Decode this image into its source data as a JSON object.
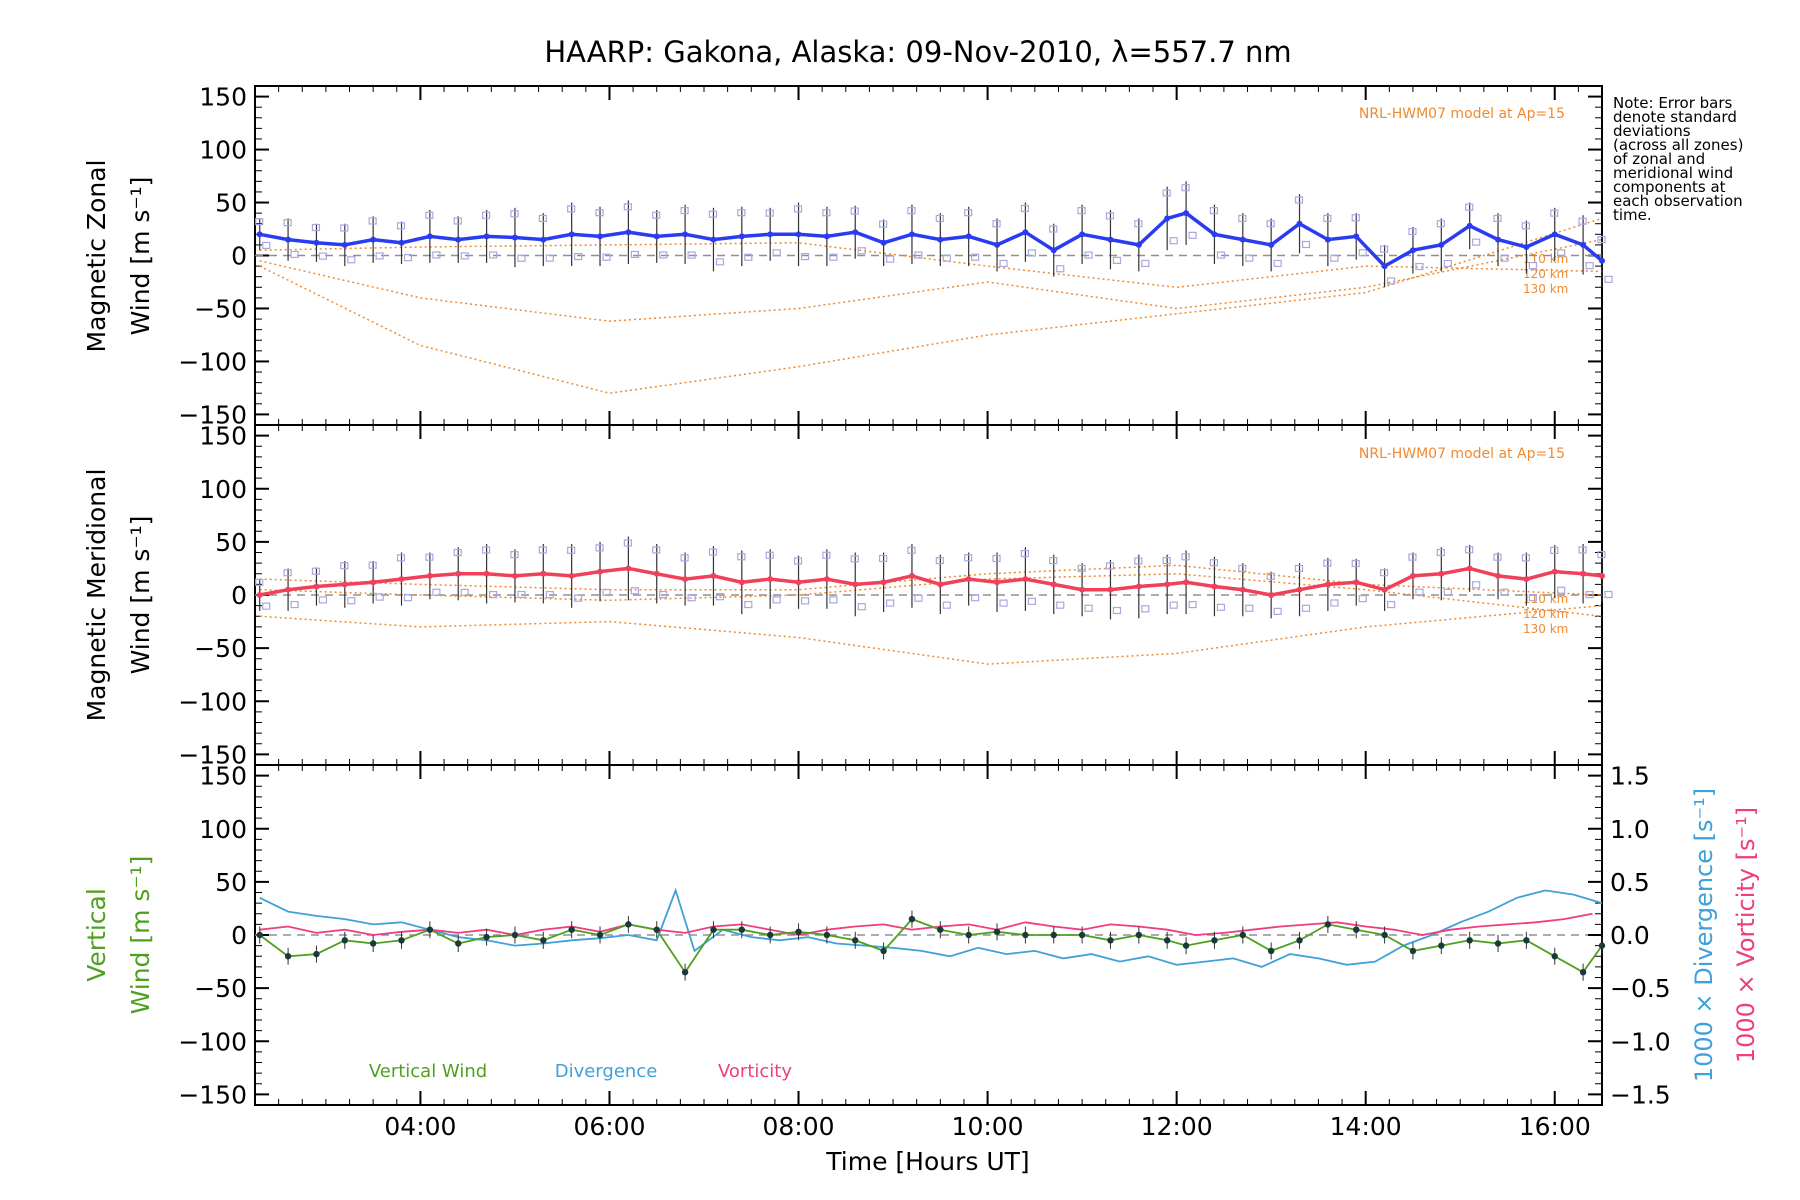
{
  "title": "HAARP: Gakona,  Alaska: 09-Nov-2010, λ=557.7 nm",
  "note_lines": [
    "Note: Error bars",
    "denote standard",
    "deviations",
    "(across all zones)",
    "of zonal and",
    "meridional wind",
    "components at",
    "each observation",
    "time."
  ],
  "colors": {
    "zonal": "#2a3cf0",
    "meridional": "#f0405a",
    "model": "#f08a30",
    "vertical": "#50a020",
    "divergence": "#40a0d8",
    "vorticity": "#f03c80",
    "scatter": "#a8a8e0",
    "zero_line": "#909090"
  },
  "chart_data": {
    "type": "line",
    "xlabel": "Time [Hours UT]",
    "x_ticks": [
      "04:00",
      "06:00",
      "08:00",
      "10:00",
      "12:00",
      "14:00",
      "16:00"
    ],
    "x_tick_hours": [
      4,
      6,
      8,
      10,
      12,
      14,
      16
    ],
    "xlim": [
      2.25,
      16.5
    ],
    "ylim": [
      -160,
      160
    ],
    "y_ticks": [
      "150",
      "100",
      "50",
      "0",
      "−50",
      "−100",
      "−150"
    ],
    "y_tick_values": [
      150,
      100,
      50,
      0,
      -50,
      -100,
      -150
    ],
    "grid": false,
    "panels": [
      {
        "id": "zonal",
        "ylabel_line1": "Magnetic Zonal",
        "ylabel_line2": "Wind [m s⁻¹]",
        "model_label": "NRL-HWM07 model at Ap=15",
        "model_altitude_labels": [
          "110 km",
          "120 km",
          "130 km"
        ],
        "series": {
          "x": [
            2.3,
            2.6,
            2.9,
            3.2,
            3.5,
            3.8,
            4.1,
            4.4,
            4.7,
            5.0,
            5.3,
            5.6,
            5.9,
            6.2,
            6.5,
            6.8,
            7.1,
            7.4,
            7.7,
            8.0,
            8.3,
            8.6,
            8.9,
            9.2,
            9.5,
            9.8,
            10.1,
            10.4,
            10.7,
            11.0,
            11.3,
            11.6,
            11.9,
            12.1,
            12.4,
            12.7,
            13.0,
            13.3,
            13.6,
            13.9,
            14.2,
            14.5,
            14.8,
            15.1,
            15.4,
            15.7,
            16.0,
            16.3,
            16.5
          ],
          "y": [
            20,
            15,
            12,
            10,
            15,
            12,
            18,
            15,
            18,
            17,
            15,
            20,
            18,
            22,
            18,
            20,
            15,
            18,
            20,
            20,
            18,
            22,
            12,
            20,
            15,
            18,
            10,
            22,
            5,
            20,
            15,
            10,
            35,
            40,
            20,
            15,
            10,
            30,
            15,
            18,
            -10,
            5,
            10,
            28,
            15,
            8,
            20,
            10,
            -5
          ],
          "error": [
            15,
            20,
            18,
            20,
            22,
            20,
            25,
            22,
            25,
            28,
            25,
            30,
            28,
            30,
            25,
            28,
            30,
            28,
            25,
            30,
            28,
            25,
            22,
            28,
            25,
            28,
            25,
            28,
            25,
            28,
            28,
            25,
            30,
            30,
            28,
            25,
            25,
            28,
            25,
            22,
            20,
            22,
            25,
            22,
            25,
            25,
            25,
            28,
            25
          ]
        },
        "model_curves": [
          {
            "name": "110 km",
            "x": [
              2.3,
              4.0,
              6.0,
              8.0,
              10.0,
              12.0,
              14.0,
              16.5
            ],
            "y": [
              5,
              8,
              10,
              12,
              -10,
              -30,
              -10,
              -15
            ]
          },
          {
            "name": "120 km",
            "x": [
              2.3,
              4.0,
              6.0,
              8.0,
              10.0,
              12.0,
              14.0,
              16.5
            ],
            "y": [
              -5,
              -40,
              -62,
              -50,
              -25,
              -50,
              -30,
              15
            ]
          },
          {
            "name": "130 km",
            "x": [
              2.3,
              4.0,
              6.0,
              8.0,
              10.0,
              12.0,
              14.0,
              16.5
            ],
            "y": [
              -10,
              -85,
              -130,
              -105,
              -75,
              -55,
              -35,
              35
            ]
          }
        ]
      },
      {
        "id": "meridional",
        "ylabel_line1": "Magnetic Meridional",
        "ylabel_line2": "Wind [m s⁻¹]",
        "model_label": "NRL-HWM07 model at Ap=15",
        "model_altitude_labels": [
          "110 km",
          "120 km",
          "130 km"
        ],
        "series": {
          "x": [
            2.3,
            2.6,
            2.9,
            3.2,
            3.5,
            3.8,
            4.1,
            4.4,
            4.7,
            5.0,
            5.3,
            5.6,
            5.9,
            6.2,
            6.5,
            6.8,
            7.1,
            7.4,
            7.7,
            8.0,
            8.3,
            8.6,
            8.9,
            9.2,
            9.5,
            9.8,
            10.1,
            10.4,
            10.7,
            11.0,
            11.3,
            11.6,
            11.9,
            12.1,
            12.4,
            12.7,
            13.0,
            13.3,
            13.6,
            13.9,
            14.2,
            14.5,
            14.8,
            15.1,
            15.4,
            15.7,
            16.0,
            16.3,
            16.5
          ],
          "y": [
            0,
            5,
            8,
            10,
            12,
            15,
            18,
            20,
            20,
            18,
            20,
            18,
            22,
            25,
            20,
            15,
            18,
            12,
            15,
            12,
            15,
            10,
            12,
            18,
            10,
            15,
            12,
            15,
            10,
            5,
            5,
            8,
            10,
            12,
            8,
            5,
            0,
            5,
            10,
            12,
            5,
            18,
            20,
            25,
            18,
            15,
            22,
            20,
            18
          ],
          "error": [
            15,
            20,
            18,
            22,
            20,
            25,
            22,
            25,
            28,
            25,
            28,
            30,
            28,
            30,
            28,
            25,
            28,
            30,
            28,
            25,
            28,
            30,
            28,
            30,
            28,
            25,
            28,
            30,
            28,
            25,
            28,
            30,
            28,
            30,
            28,
            25,
            22,
            25,
            25,
            22,
            20,
            22,
            25,
            22,
            22,
            25,
            25,
            28,
            25
          ]
        },
        "model_curves": [
          {
            "name": "110 km",
            "x": [
              2.3,
              4.0,
              6.0,
              8.0,
              10.0,
              12.0,
              14.0,
              16.5
            ],
            "y": [
              15,
              10,
              5,
              5,
              20,
              28,
              10,
              0
            ]
          },
          {
            "name": "120 km",
            "x": [
              2.3,
              4.0,
              6.0,
              8.0,
              10.0,
              12.0,
              14.0,
              16.5
            ],
            "y": [
              5,
              0,
              -5,
              0,
              15,
              20,
              5,
              -20
            ]
          },
          {
            "name": "130 km",
            "x": [
              2.3,
              4.0,
              6.0,
              8.0,
              10.0,
              12.0,
              14.0,
              16.5
            ],
            "y": [
              -20,
              -30,
              -25,
              -40,
              -65,
              -55,
              -30,
              -10
            ]
          }
        ]
      },
      {
        "id": "vertical",
        "ylabel_line1": "Vertical",
        "ylabel_line2": "Wind [m s⁻¹]",
        "y2_ticks": [
          "1.5",
          "1.0",
          "0.5",
          "0.0",
          "−0.5",
          "−1.0",
          "−1.5"
        ],
        "y2_tick_values": [
          1.5,
          1.0,
          0.5,
          0.0,
          -0.5,
          -1.0,
          -1.5
        ],
        "y2lim": [
          -1.6,
          1.6
        ],
        "y2label_divergence": "1000 × Divergence [s⁻¹]",
        "y2label_vorticity": "1000 × Vorticity [s⁻¹]",
        "legend": [
          "Vertical Wind",
          "Divergence",
          "Vorticity"
        ],
        "vertical_wind": {
          "x": [
            2.3,
            2.6,
            2.9,
            3.2,
            3.5,
            3.8,
            4.1,
            4.4,
            4.7,
            5.0,
            5.3,
            5.6,
            5.9,
            6.2,
            6.5,
            6.8,
            7.1,
            7.4,
            7.7,
            8.0,
            8.3,
            8.6,
            8.9,
            9.2,
            9.5,
            9.8,
            10.1,
            10.4,
            10.7,
            11.0,
            11.3,
            11.6,
            11.9,
            12.1,
            12.4,
            12.7,
            13.0,
            13.3,
            13.6,
            13.9,
            14.2,
            14.5,
            14.8,
            15.1,
            15.4,
            15.7,
            16.0,
            16.3,
            16.5
          ],
          "y": [
            0,
            -20,
            -18,
            -5,
            -8,
            -5,
            5,
            -8,
            -2,
            0,
            -5,
            5,
            0,
            10,
            5,
            -35,
            5,
            5,
            0,
            3,
            0,
            -5,
            -15,
            15,
            5,
            0,
            3,
            0,
            0,
            0,
            -5,
            0,
            -5,
            -10,
            -5,
            0,
            -15,
            -5,
            10,
            5,
            0,
            -15,
            -10,
            -5,
            -8,
            -5,
            -20,
            -35,
            -10
          ]
        },
        "divergence": {
          "x": [
            2.3,
            2.6,
            2.9,
            3.2,
            3.5,
            3.8,
            4.1,
            4.4,
            4.7,
            5.0,
            5.3,
            5.6,
            5.9,
            6.2,
            6.5,
            6.7,
            6.9,
            7.2,
            7.5,
            7.8,
            8.1,
            8.4,
            8.7,
            9.0,
            9.3,
            9.6,
            9.9,
            10.2,
            10.5,
            10.8,
            11.1,
            11.4,
            11.7,
            12.0,
            12.3,
            12.6,
            12.9,
            13.2,
            13.5,
            13.8,
            14.1,
            14.4,
            14.7,
            15.0,
            15.3,
            15.6,
            15.9,
            16.2,
            16.5
          ],
          "y": [
            0.35,
            0.22,
            0.18,
            0.15,
            0.1,
            0.12,
            0.05,
            -0.02,
            -0.05,
            -0.1,
            -0.08,
            -0.05,
            -0.03,
            0.0,
            -0.05,
            0.42,
            -0.15,
            0.05,
            -0.02,
            -0.05,
            -0.02,
            -0.08,
            -0.1,
            -0.12,
            -0.15,
            -0.2,
            -0.12,
            -0.18,
            -0.15,
            -0.22,
            -0.18,
            -0.25,
            -0.2,
            -0.28,
            -0.25,
            -0.22,
            -0.3,
            -0.18,
            -0.22,
            -0.28,
            -0.25,
            -0.1,
            0.0,
            0.12,
            0.22,
            0.35,
            0.42,
            0.38,
            0.3
          ]
        },
        "vorticity": {
          "x": [
            2.3,
            2.6,
            2.9,
            3.2,
            3.5,
            3.8,
            4.1,
            4.4,
            4.7,
            5.0,
            5.3,
            5.6,
            5.9,
            6.2,
            6.5,
            6.8,
            7.1,
            7.4,
            7.7,
            8.0,
            8.3,
            8.6,
            8.9,
            9.2,
            9.5,
            9.8,
            10.1,
            10.4,
            10.7,
            11.0,
            11.3,
            11.6,
            11.9,
            12.2,
            12.5,
            12.8,
            13.1,
            13.4,
            13.7,
            14.0,
            14.3,
            14.6,
            14.9,
            15.2,
            15.5,
            15.8,
            16.1,
            16.4
          ],
          "y": [
            0.05,
            0.08,
            0.02,
            0.05,
            0.0,
            0.03,
            0.05,
            0.02,
            0.05,
            0.0,
            0.05,
            0.08,
            0.03,
            0.1,
            0.05,
            0.02,
            0.08,
            0.1,
            0.05,
            0.0,
            0.05,
            0.08,
            0.1,
            0.05,
            0.08,
            0.1,
            0.05,
            0.12,
            0.08,
            0.05,
            0.1,
            0.08,
            0.05,
            0.0,
            0.02,
            0.05,
            0.08,
            0.1,
            0.12,
            0.08,
            0.05,
            0.0,
            0.05,
            0.08,
            0.1,
            0.12,
            0.15,
            0.2
          ]
        }
      }
    ]
  }
}
